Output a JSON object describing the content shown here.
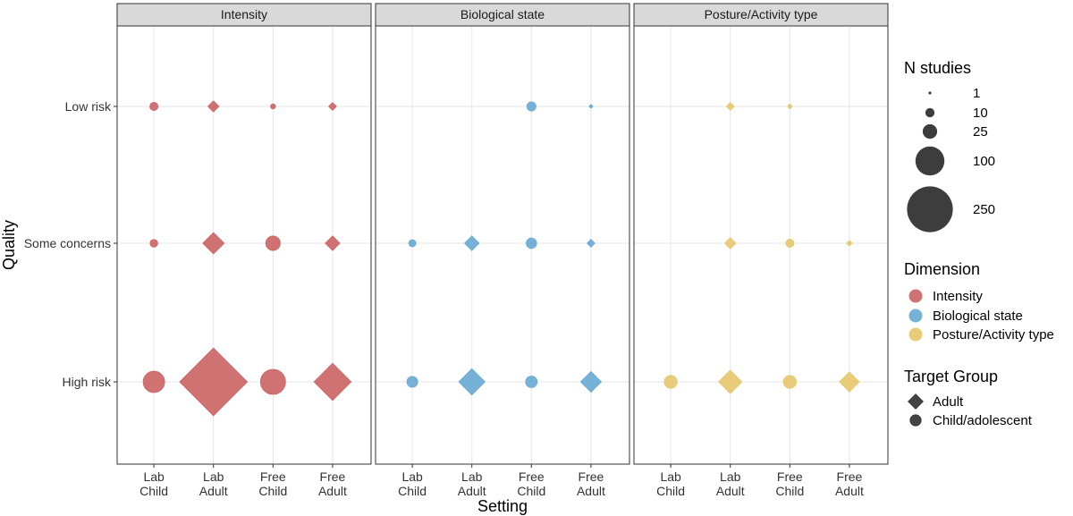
{
  "chart_data": {
    "type": "scatter",
    "xlabel": "Setting",
    "ylabel": "Quality",
    "x_categories": [
      {
        "line1": "Lab",
        "line2": "Child"
      },
      {
        "line1": "Lab",
        "line2": "Adult"
      },
      {
        "line1": "Free",
        "line2": "Child"
      },
      {
        "line1": "Free",
        "line2": "Adult"
      }
    ],
    "y_categories": [
      "Low risk",
      "Some concerns",
      "High risk"
    ],
    "grid": true,
    "panels": [
      {
        "name": "Intensity",
        "color": "#cd6666",
        "points": [
          {
            "setting": "Lab Child",
            "quality": "Low risk",
            "n": 8,
            "group": "Child/adolescent"
          },
          {
            "setting": "Lab Adult",
            "quality": "Low risk",
            "n": 8,
            "group": "Adult"
          },
          {
            "setting": "Free Child",
            "quality": "Low risk",
            "n": 3,
            "group": "Child/adolescent"
          },
          {
            "setting": "Free Adult",
            "quality": "Low risk",
            "n": 4,
            "group": "Adult"
          },
          {
            "setting": "Lab Child",
            "quality": "Some concerns",
            "n": 7,
            "group": "Child/adolescent"
          },
          {
            "setting": "Lab Adult",
            "quality": "Some concerns",
            "n": 30,
            "group": "Adult"
          },
          {
            "setting": "Free Child",
            "quality": "Some concerns",
            "n": 25,
            "group": "Child/adolescent"
          },
          {
            "setting": "Free Adult",
            "quality": "Some concerns",
            "n": 14,
            "group": "Adult"
          },
          {
            "setting": "Lab Child",
            "quality": "High risk",
            "n": 55,
            "group": "Child/adolescent"
          },
          {
            "setting": "Lab Adult",
            "quality": "High risk",
            "n": 300,
            "group": "Adult"
          },
          {
            "setting": "Free Child",
            "quality": "High risk",
            "n": 75,
            "group": "Child/adolescent"
          },
          {
            "setting": "Free Adult",
            "quality": "High risk",
            "n": 90,
            "group": "Adult"
          }
        ]
      },
      {
        "name": "Biological state",
        "color": "#6aaad4",
        "points": [
          {
            "setting": "Free Child",
            "quality": "Low risk",
            "n": 10,
            "group": "Child/adolescent"
          },
          {
            "setting": "Free Adult",
            "quality": "Low risk",
            "n": 1,
            "group": "Adult"
          },
          {
            "setting": "Lab Child",
            "quality": "Some concerns",
            "n": 6,
            "group": "Child/adolescent"
          },
          {
            "setting": "Lab Adult",
            "quality": "Some concerns",
            "n": 14,
            "group": "Adult"
          },
          {
            "setting": "Free Child",
            "quality": "Some concerns",
            "n": 13,
            "group": "Child/adolescent"
          },
          {
            "setting": "Free Adult",
            "quality": "Some concerns",
            "n": 4,
            "group": "Adult"
          },
          {
            "setting": "Lab Child",
            "quality": "High risk",
            "n": 14,
            "group": "Child/adolescent"
          },
          {
            "setting": "Lab Adult",
            "quality": "High risk",
            "n": 45,
            "group": "Adult"
          },
          {
            "setting": "Free Child",
            "quality": "High risk",
            "n": 16,
            "group": "Child/adolescent"
          },
          {
            "setting": "Free Adult",
            "quality": "High risk",
            "n": 28,
            "group": "Adult"
          }
        ]
      },
      {
        "name": "Posture/Activity type",
        "color": "#e6c86e",
        "points": [
          {
            "setting": "Lab Adult",
            "quality": "Low risk",
            "n": 4,
            "group": "Adult"
          },
          {
            "setting": "Free Child",
            "quality": "Low risk",
            "n": 2,
            "group": "Child/adolescent"
          },
          {
            "setting": "Lab Adult",
            "quality": "Some concerns",
            "n": 8,
            "group": "Adult"
          },
          {
            "setting": "Free Child",
            "quality": "Some concerns",
            "n": 8,
            "group": "Child/adolescent"
          },
          {
            "setting": "Free Adult",
            "quality": "Some concerns",
            "n": 2,
            "group": "Adult"
          },
          {
            "setting": "Lab Child",
            "quality": "High risk",
            "n": 20,
            "group": "Child/adolescent"
          },
          {
            "setting": "Lab Adult",
            "quality": "High risk",
            "n": 36,
            "group": "Adult"
          },
          {
            "setting": "Free Child",
            "quality": "High risk",
            "n": 20,
            "group": "Child/adolescent"
          },
          {
            "setting": "Free Adult",
            "quality": "High risk",
            "n": 26,
            "group": "Adult"
          }
        ]
      }
    ],
    "legend": {
      "placement": "right",
      "size": {
        "title": "N studies",
        "values": [
          1,
          10,
          25,
          100,
          250
        ]
      },
      "dimension": {
        "title": "Dimension",
        "items": [
          {
            "label": "Intensity",
            "color": "#cd6666"
          },
          {
            "label": "Biological state",
            "color": "#6aaad4"
          },
          {
            "label": "Posture/Activity type",
            "color": "#e6c86e"
          }
        ]
      },
      "target_group": {
        "title": "Target Group",
        "items": [
          {
            "label": "Adult",
            "shape": "diamond"
          },
          {
            "label": "Child/adolescent",
            "shape": "circle"
          }
        ]
      }
    }
  }
}
